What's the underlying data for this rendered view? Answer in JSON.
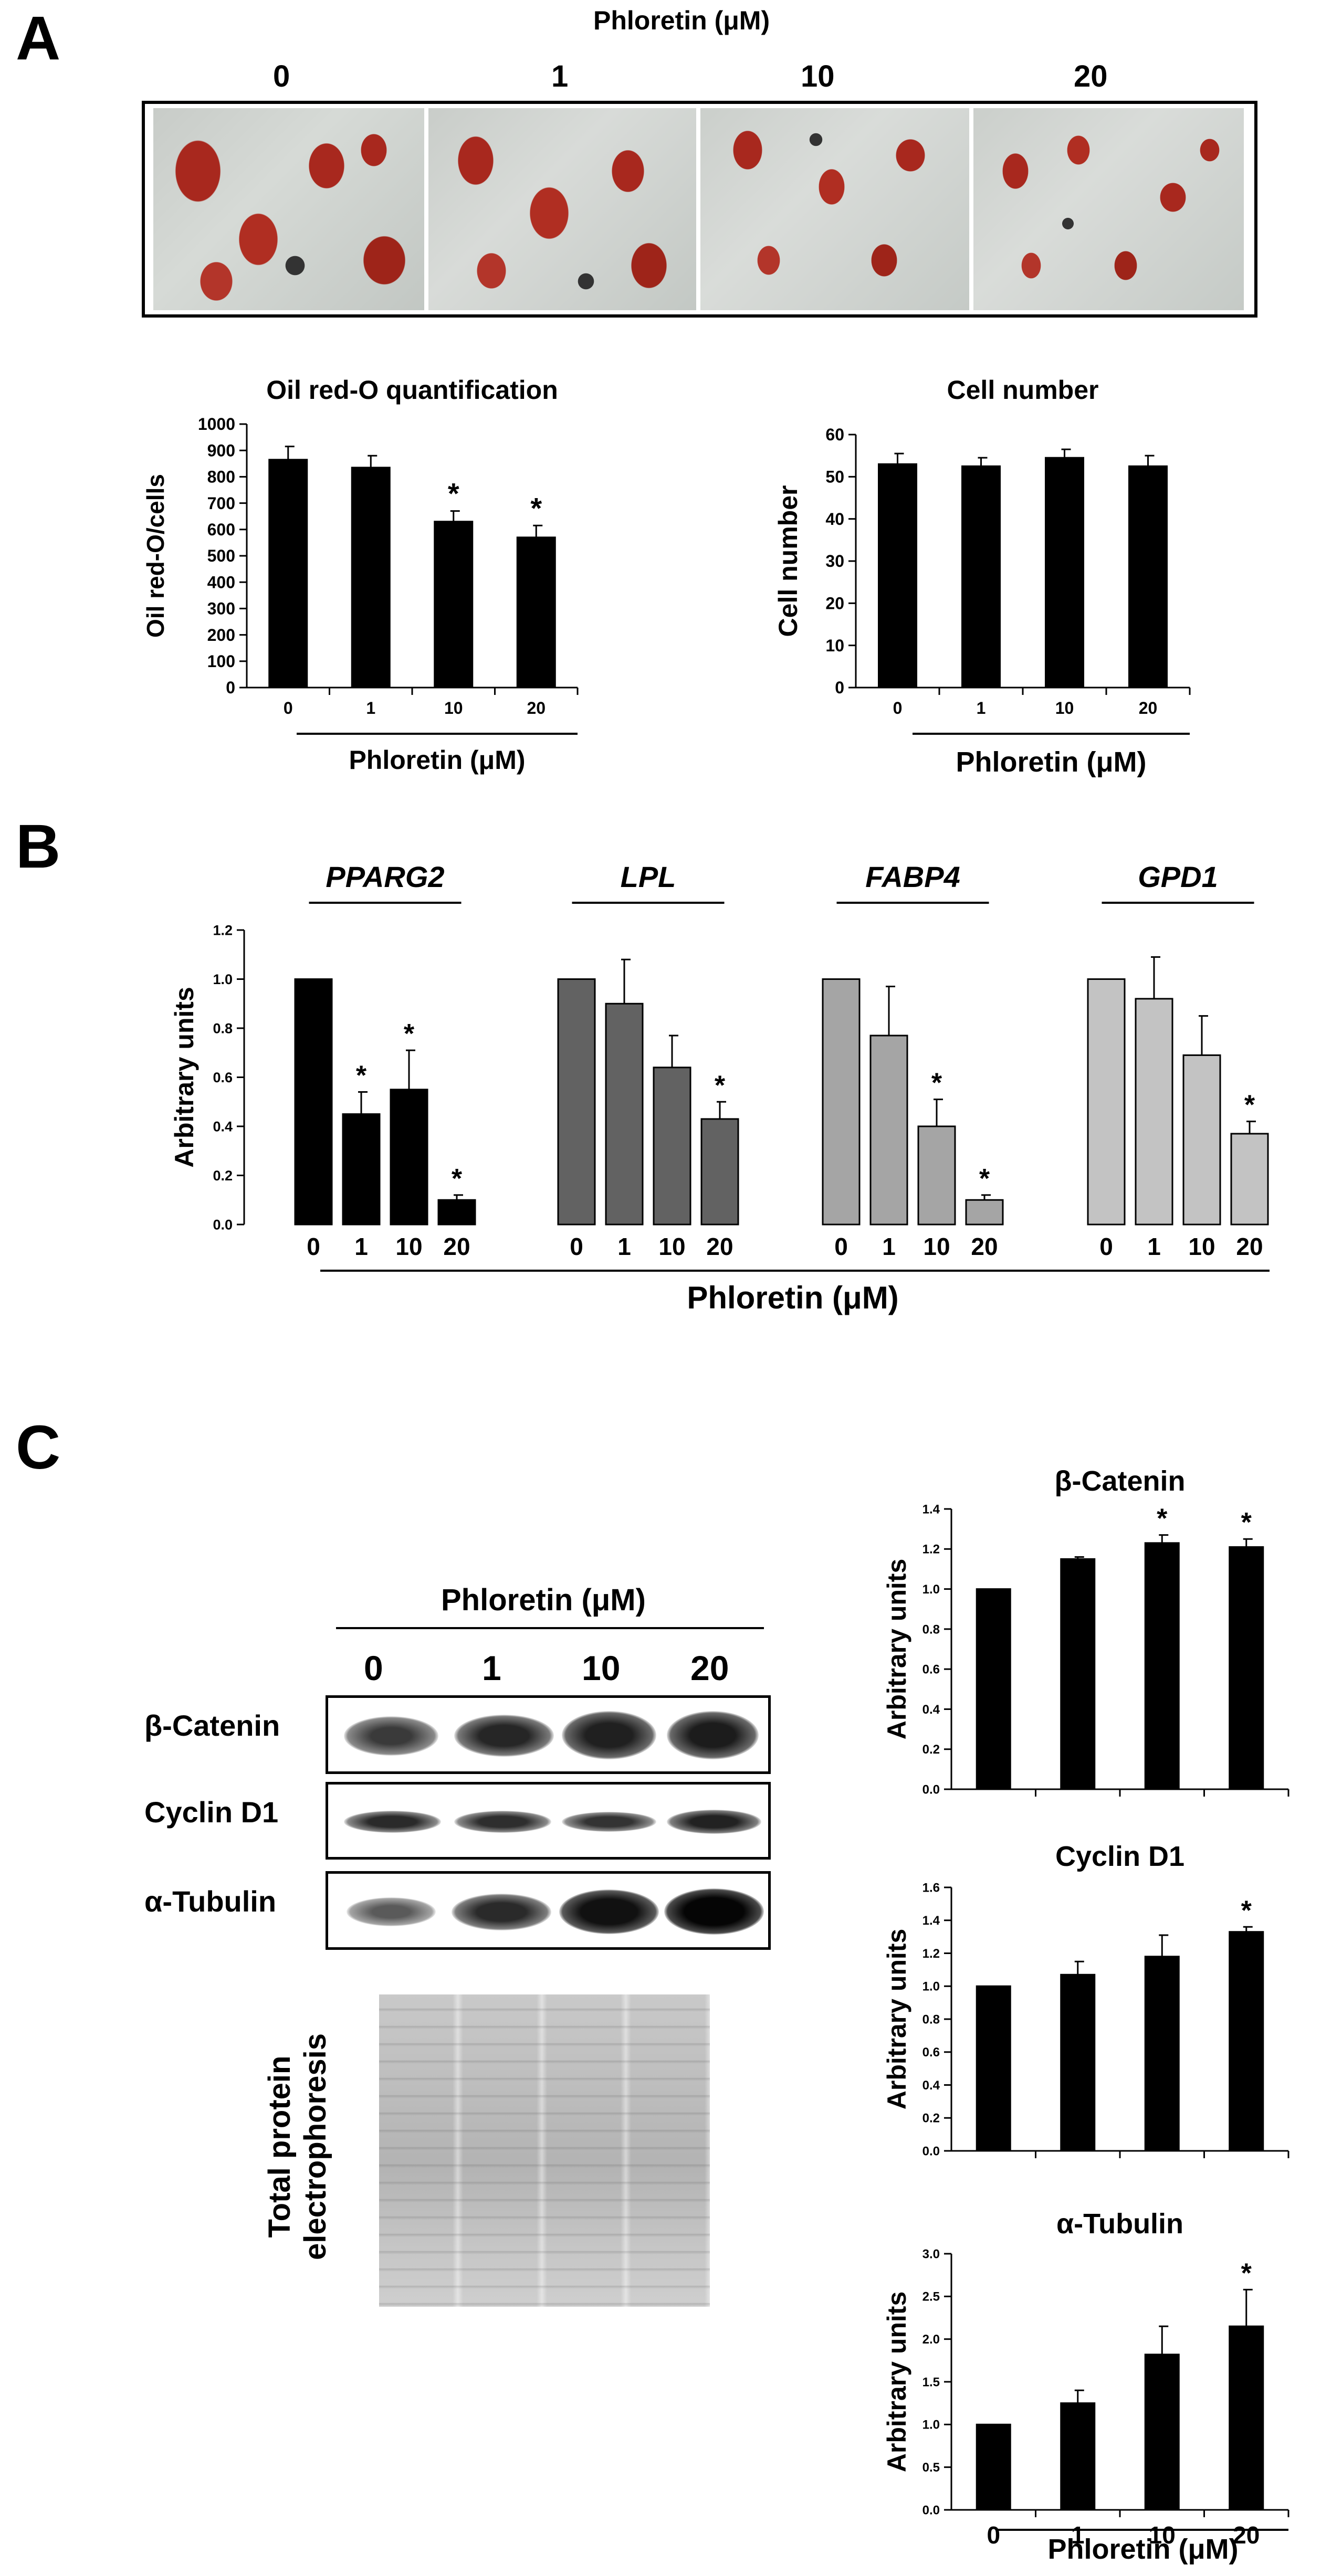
{
  "panels": {
    "a": "A",
    "b": "B",
    "c": "C"
  },
  "panel_a": {
    "header": "Phloretin (μM)",
    "doses": [
      "0",
      "1",
      "10",
      "20"
    ],
    "micrographs": [
      "oil-red-o-0",
      "oil-red-o-1",
      "oil-red-o-10",
      "oil-red-o-20"
    ]
  },
  "panel_c": {
    "blot_header": "Phloretin (μM)",
    "doses": [
      "0",
      "1",
      "10",
      "20"
    ],
    "blot_rows": [
      "β-Catenin",
      "Cyclin D1",
      "α-Tubulin"
    ],
    "gel_label_line1": "Total protein",
    "gel_label_line2": "electrophoresis"
  },
  "colors": {
    "black": "#000000",
    "dark_gray": "#626262",
    "mid_gray": "#a5a5a5",
    "light_gray": "#c3c3c3",
    "oil_red": "#a8281e"
  },
  "chart_data": [
    {
      "id": "oil",
      "type": "bar",
      "title": "Oil red-O quantification",
      "ylabel": "Oil red-O/cells",
      "xlabel": "Phloretin (μM)",
      "categories": [
        "0",
        "1",
        "10",
        "20"
      ],
      "values": [
        865,
        835,
        630,
        570
      ],
      "errors": [
        50,
        45,
        40,
        45
      ],
      "significant": [
        false,
        false,
        true,
        true
      ],
      "ylim": [
        0,
        1000
      ],
      "yticks": [
        "0",
        "100",
        "200",
        "300",
        "400",
        "500",
        "600",
        "700",
        "800",
        "900",
        "1000"
      ],
      "color": "#000000"
    },
    {
      "id": "cells",
      "type": "bar",
      "title": "Cell number",
      "ylabel": "Cell number",
      "xlabel": "Phloretin (μM)",
      "categories": [
        "0",
        "1",
        "10",
        "20"
      ],
      "values": [
        53,
        52.5,
        54.5,
        52.5
      ],
      "errors": [
        2.5,
        2,
        2,
        2.5
      ],
      "significant": [
        false,
        false,
        false,
        false
      ],
      "ylim": [
        0,
        60
      ],
      "yticks": [
        "0",
        "10",
        "20",
        "30",
        "40",
        "50",
        "60"
      ],
      "color": "#000000"
    },
    {
      "id": "genes",
      "type": "bar",
      "ylabel": "Arbitrary units",
      "xlabel": "Phloretin (μM)",
      "ylim": [
        0,
        1.2
      ],
      "yticks": [
        "0.0",
        "0.2",
        "0.4",
        "0.6",
        "0.8",
        "1.0",
        "1.2"
      ],
      "groups": [
        {
          "name": "PPARG2",
          "color": "#000000",
          "categories": [
            "0",
            "1",
            "10",
            "20"
          ],
          "values": [
            1.0,
            0.45,
            0.55,
            0.1
          ],
          "errors": [
            0,
            0.09,
            0.16,
            0.02
          ],
          "significant": [
            false,
            true,
            true,
            true
          ]
        },
        {
          "name": "LPL",
          "color": "#626262",
          "categories": [
            "0",
            "1",
            "10",
            "20"
          ],
          "values": [
            1.0,
            0.9,
            0.64,
            0.43
          ],
          "errors": [
            0,
            0.18,
            0.13,
            0.07
          ],
          "significant": [
            false,
            false,
            false,
            true
          ]
        },
        {
          "name": "FABP4",
          "color": "#a5a5a5",
          "categories": [
            "0",
            "1",
            "10",
            "20"
          ],
          "values": [
            1.0,
            0.77,
            0.4,
            0.1
          ],
          "errors": [
            0,
            0.2,
            0.11,
            0.02
          ],
          "significant": [
            false,
            false,
            true,
            true
          ]
        },
        {
          "name": "GPD1",
          "color": "#c3c3c3",
          "categories": [
            "0",
            "1",
            "10",
            "20"
          ],
          "values": [
            1.0,
            0.92,
            0.69,
            0.37
          ],
          "errors": [
            0,
            0.17,
            0.16,
            0.05
          ],
          "significant": [
            false,
            false,
            false,
            true
          ]
        }
      ]
    },
    {
      "id": "bcat",
      "type": "bar",
      "title": "β-Catenin",
      "ylabel": "Arbitrary units",
      "categories": [
        "0",
        "1",
        "10",
        "20"
      ],
      "values": [
        1.0,
        1.15,
        1.23,
        1.21
      ],
      "errors": [
        0,
        0.01,
        0.04,
        0.04
      ],
      "significant": [
        false,
        false,
        true,
        true
      ],
      "ylim": [
        0,
        1.4
      ],
      "yticks": [
        "0.0",
        "0.2",
        "0.4",
        "0.6",
        "0.8",
        "1.0",
        "1.2",
        "1.4"
      ],
      "color": "#000000"
    },
    {
      "id": "cycd1",
      "type": "bar",
      "title": "Cyclin D1",
      "ylabel": "Arbitrary units",
      "categories": [
        "0",
        "1",
        "10",
        "20"
      ],
      "values": [
        1.0,
        1.07,
        1.18,
        1.33
      ],
      "errors": [
        0,
        0.08,
        0.13,
        0.03
      ],
      "significant": [
        false,
        false,
        false,
        true
      ],
      "ylim": [
        0,
        1.6
      ],
      "yticks": [
        "0.0",
        "0.2",
        "0.4",
        "0.6",
        "0.8",
        "1.0",
        "1.2",
        "1.4",
        "1.6"
      ],
      "color": "#000000"
    },
    {
      "id": "atub",
      "type": "bar",
      "title": "α-Tubulin",
      "ylabel": "Arbitrary units",
      "xlabel": "Phloretin (μM)",
      "categories": [
        "0",
        "1",
        "10",
        "20"
      ],
      "values": [
        1.0,
        1.25,
        1.82,
        2.15
      ],
      "errors": [
        0,
        0.15,
        0.33,
        0.43
      ],
      "significant": [
        false,
        false,
        false,
        true
      ],
      "ylim": [
        0,
        3.0
      ],
      "yticks": [
        "0.0",
        "0.5",
        "1.0",
        "1.5",
        "2.0",
        "2.5",
        "3.0"
      ],
      "color": "#000000"
    }
  ]
}
